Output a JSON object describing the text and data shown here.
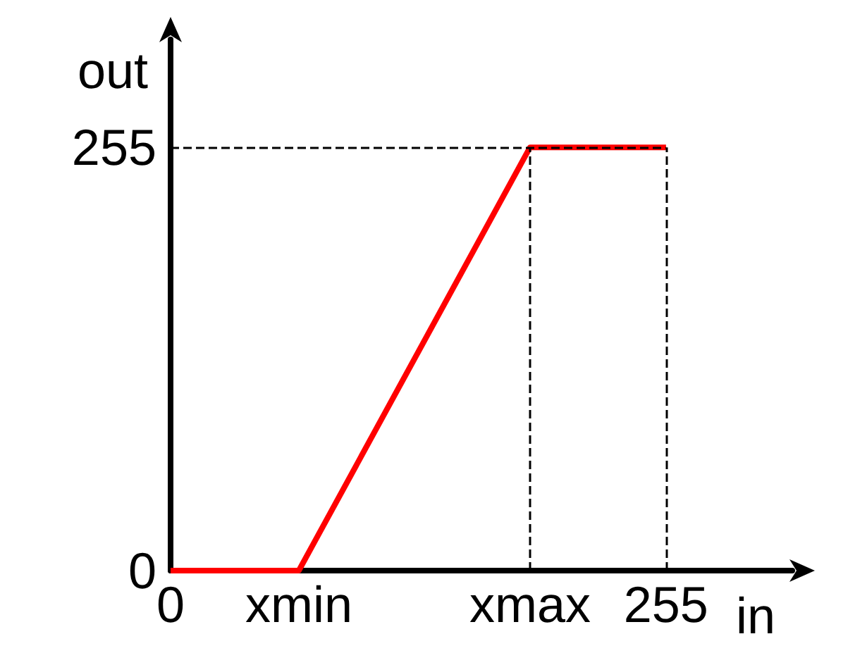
{
  "chart_data": {
    "type": "line",
    "xlabel": "in",
    "ylabel": "out",
    "x": [
      0,
      66,
      185,
      255
    ],
    "series": [
      {
        "color": "#ff0000",
        "values": [
          0,
          0,
          255,
          255
        ]
      }
    ],
    "xlim": [
      0,
      320
    ],
    "ylim": [
      0,
      320
    ],
    "xticks": [
      0,
      {
        "value": 66,
        "label": "xmin"
      },
      {
        "value": 185,
        "label": "xmax"
      },
      255
    ],
    "yticks": [
      0,
      255
    ],
    "ref_lines": [
      {
        "axis": "x",
        "value": 185,
        "color": "#000000",
        "line_style": "dashed"
      },
      {
        "axis": "x",
        "value": 255,
        "color": "#000000",
        "line_style": "dashed"
      },
      {
        "axis": "y",
        "value": 255,
        "color": "#000000",
        "line_style": "dashed"
      }
    ],
    "grid": false,
    "marker": "none",
    "line_style": "solid"
  }
}
